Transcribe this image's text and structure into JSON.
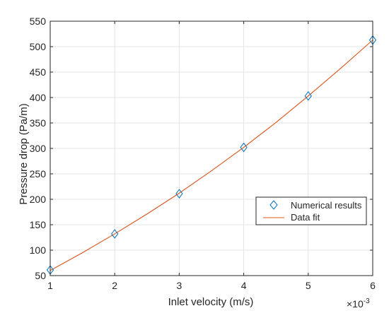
{
  "chart_data": {
    "type": "line",
    "xlabel": "Inlet velocity (m/s)",
    "ylabel": "Pressure drop (Pa/m)",
    "x_multiplier_label": "×10",
    "x_multiplier_exponent": "-3",
    "xlim": [
      0.001,
      0.006
    ],
    "ylim": [
      50,
      550
    ],
    "x_ticks": [
      0.001,
      0.002,
      0.003,
      0.004,
      0.005,
      0.006
    ],
    "x_tick_labels": [
      "1",
      "2",
      "3",
      "4",
      "5",
      "6"
    ],
    "y_ticks": [
      50,
      100,
      150,
      200,
      250,
      300,
      350,
      400,
      450,
      500,
      550
    ],
    "y_tick_labels": [
      "50",
      "100",
      "150",
      "200",
      "250",
      "300",
      "350",
      "400",
      "450",
      "500",
      "550"
    ],
    "grid": true,
    "legend_position": "right, lower-middle",
    "series": [
      {
        "name": "Numerical results",
        "kind": "scatter",
        "marker": "diamond",
        "color": "#0072BD",
        "x": [
          0.001,
          0.002,
          0.003,
          0.004,
          0.005,
          0.006
        ],
        "y": [
          61,
          132,
          211,
          302,
          403,
          513
        ]
      },
      {
        "name": "Data fit",
        "kind": "line",
        "color": "#D95319",
        "x": [
          0.001,
          0.0015,
          0.002,
          0.0025,
          0.003,
          0.0035,
          0.004,
          0.0045,
          0.005,
          0.0055,
          0.006
        ],
        "y": [
          60,
          95,
          132,
          171,
          212,
          256,
          302,
          351,
          403,
          457,
          513
        ]
      }
    ]
  }
}
